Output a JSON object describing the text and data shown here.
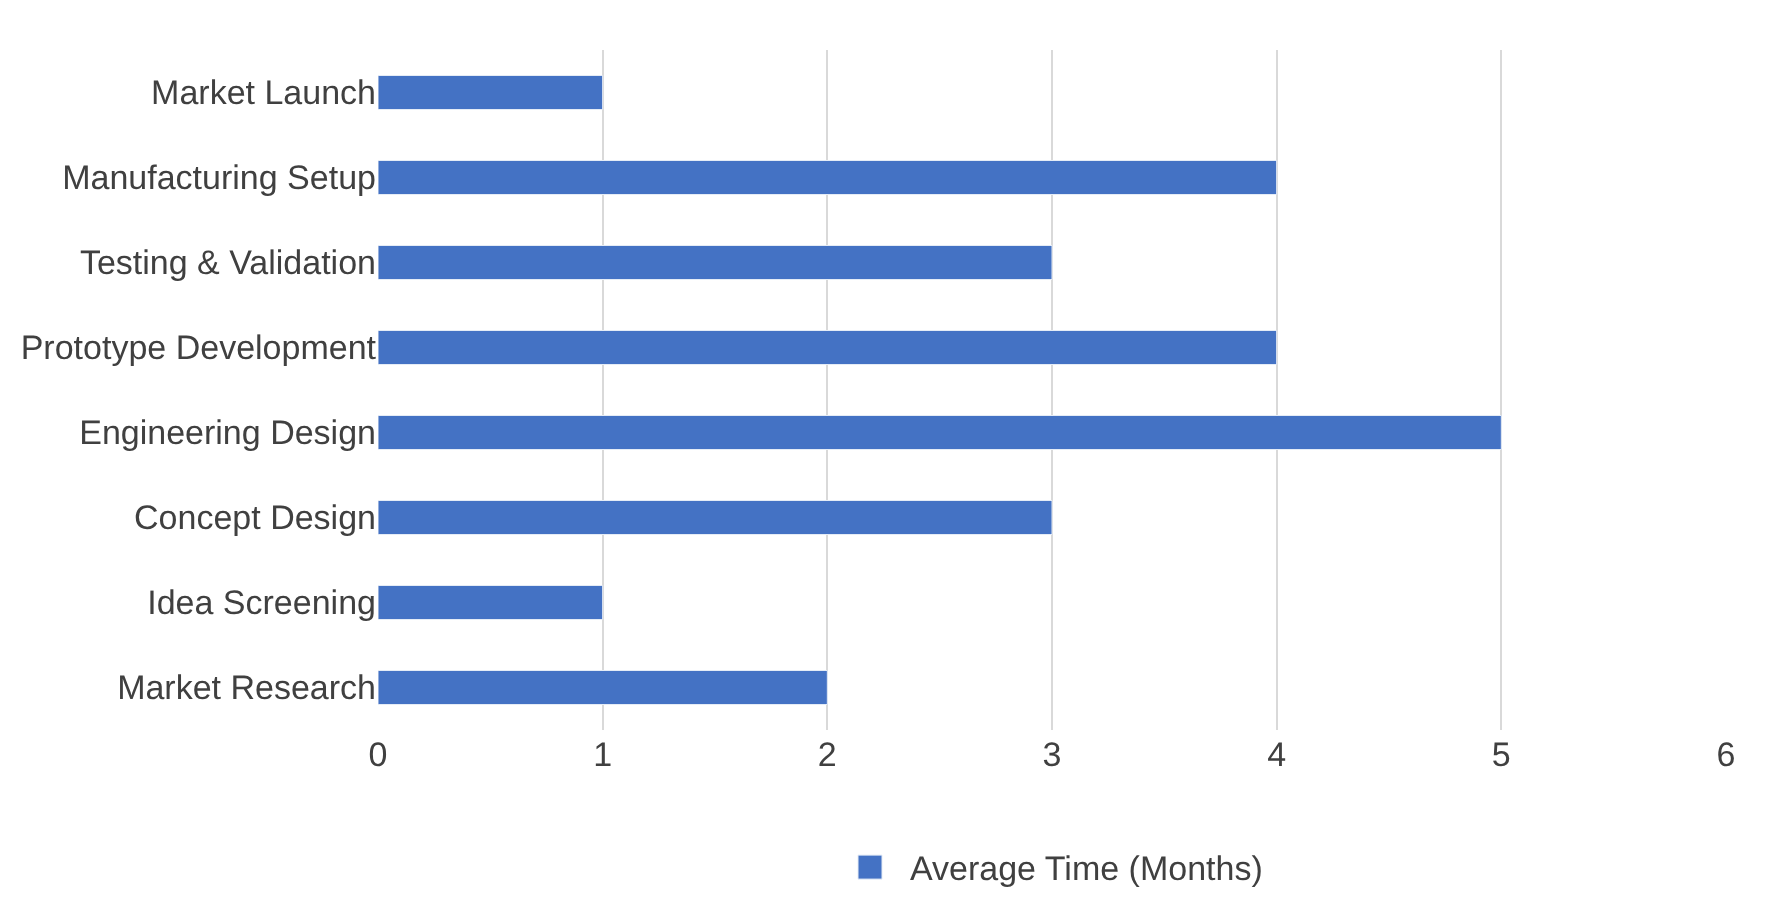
{
  "chart_data": {
    "type": "bar",
    "orientation": "horizontal",
    "categories": [
      "Market Launch",
      "Manufacturing Setup",
      "Testing & Validation",
      "Prototype Development",
      "Engineering Design",
      "Concept Design",
      "Idea Screening",
      "Market Research"
    ],
    "series": [
      {
        "name": "Average Time (Months)",
        "color": "#4472c4",
        "values": [
          1,
          4,
          3,
          4,
          5,
          3,
          1,
          2
        ]
      }
    ],
    "xlim": [
      0,
      6
    ],
    "xticks": [
      0,
      1,
      2,
      3,
      4,
      5,
      6
    ],
    "grid": "x",
    "legend": "bottom"
  }
}
